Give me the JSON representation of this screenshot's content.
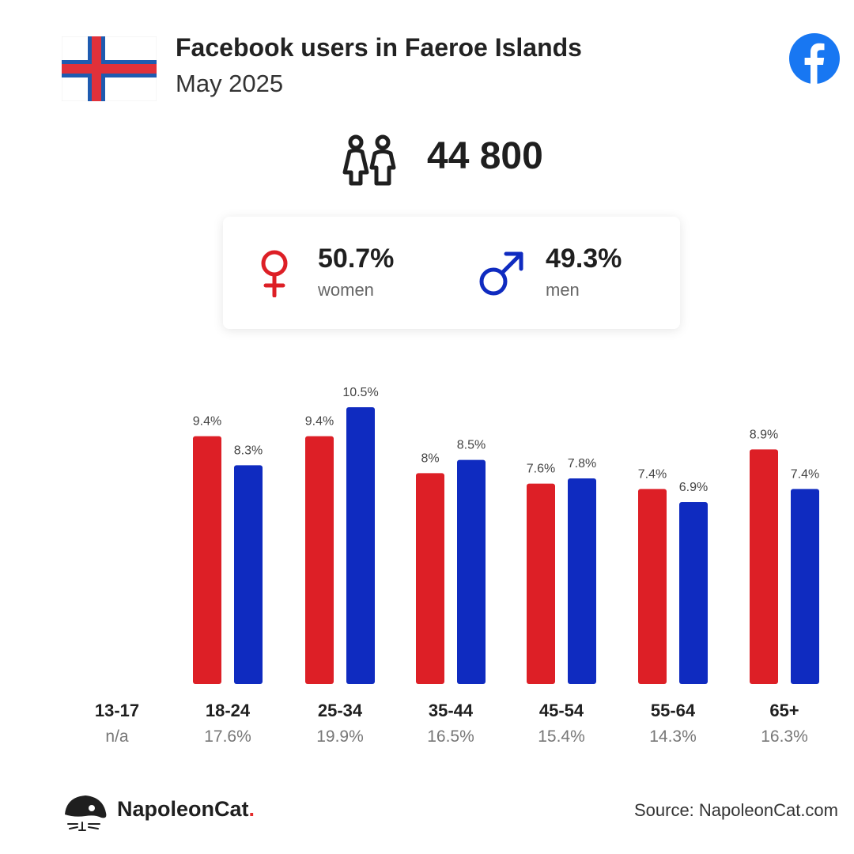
{
  "header": {
    "title": "Facebook users in Faeroe Islands",
    "subtitle": "May 2025"
  },
  "summary": {
    "total_users": "44 800"
  },
  "gender": {
    "women_pct": "50.7%",
    "women_label": "women",
    "men_pct": "49.3%",
    "men_label": "men"
  },
  "colors": {
    "women": "#dd1f26",
    "men": "#0f2bc0",
    "facebook": "#1877f2"
  },
  "chart_data": {
    "type": "bar",
    "categories": [
      "13-17",
      "18-24",
      "25-34",
      "35-44",
      "45-54",
      "55-64",
      "65+"
    ],
    "group_totals": [
      "n/a",
      "17.6%",
      "19.9%",
      "16.5%",
      "15.4%",
      "14.3%",
      "16.3%"
    ],
    "series": [
      {
        "name": "women",
        "values": [
          null,
          9.4,
          9.4,
          8,
          7.6,
          7.4,
          8.9
        ],
        "labels": [
          "",
          "9.4%",
          "9.4%",
          "8%",
          "7.6%",
          "7.4%",
          "8.9%"
        ]
      },
      {
        "name": "men",
        "values": [
          null,
          8.3,
          10.5,
          8.5,
          7.8,
          6.9,
          7.4
        ],
        "labels": [
          "",
          "8.3%",
          "10.5%",
          "8.5%",
          "7.8%",
          "6.9%",
          "7.4%"
        ]
      }
    ],
    "ylim": [
      0,
      10.5
    ],
    "legend": "none",
    "grid": false
  },
  "footer": {
    "brand": "NapoleonCat",
    "brand_dot": ".",
    "source": "Source: NapoleonCat.com"
  }
}
